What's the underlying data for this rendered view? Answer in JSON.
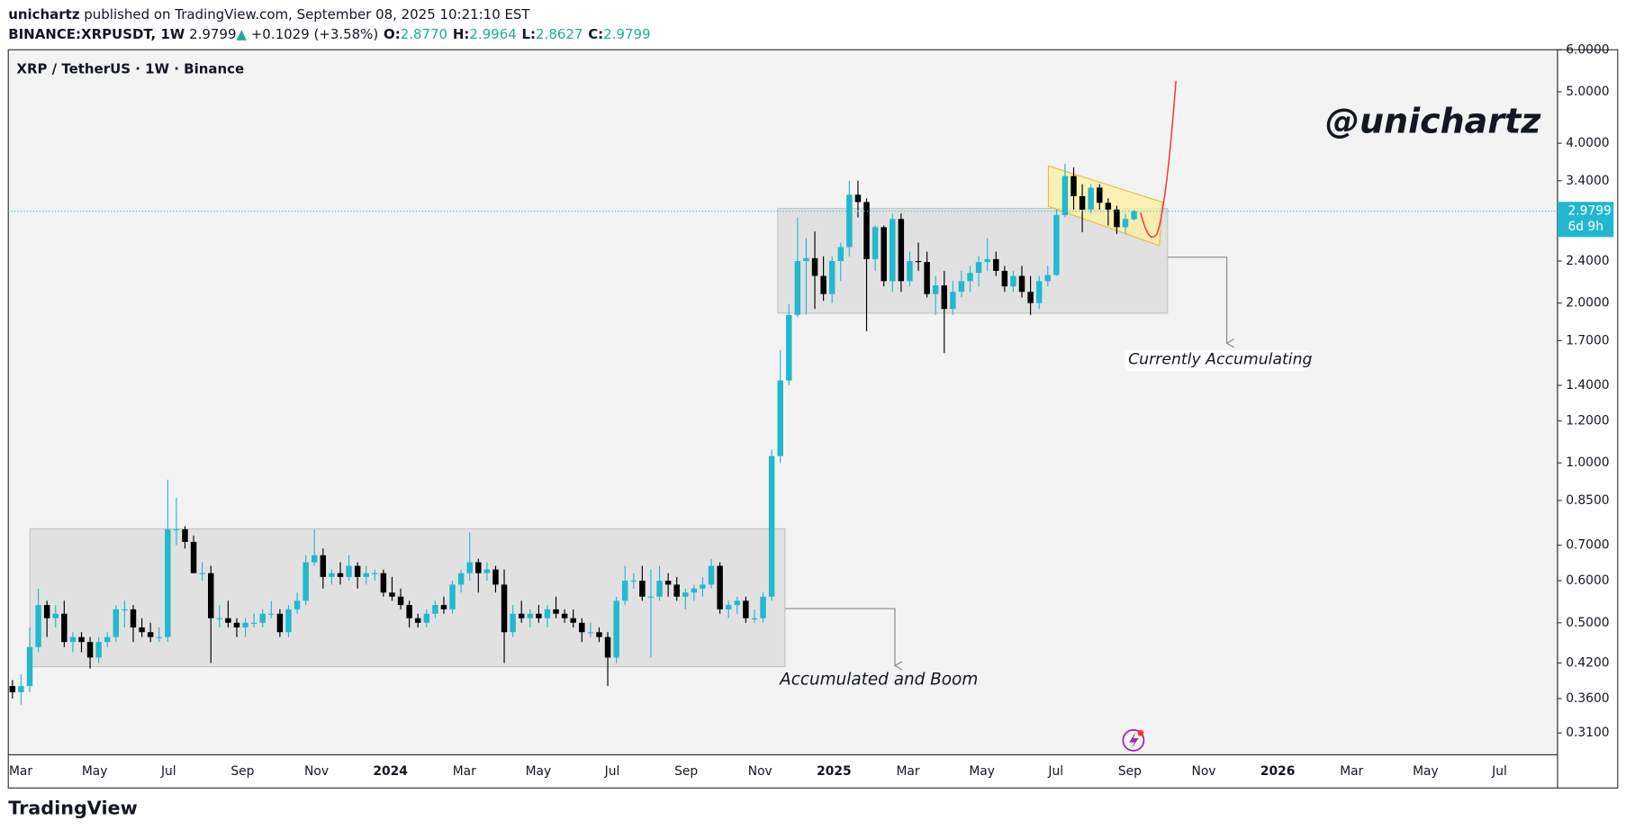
{
  "header": {
    "author": "unichartz",
    "published": "published on TradingView.com, September 08, 2025 10:21:10 EST",
    "symbol": "BINANCE:XRPUSDT, 1W",
    "last": "2.9799",
    "arrow": "▲",
    "change": "+0.1029 (+3.58%)",
    "ohlc": [
      {
        "key": "O:",
        "value": "2.8770"
      },
      {
        "key": "H:",
        "value": "2.9964"
      },
      {
        "key": "L:",
        "value": "2.8627"
      },
      {
        "key": "C:",
        "value": "2.9799"
      }
    ]
  },
  "chart_data": {
    "type": "candlestick",
    "title": "XRP / TetherUS · 1W · Binance",
    "log_scale": true,
    "grid": false,
    "up_color": "#22b8cf",
    "down_color": "#000000",
    "ylim": [
      0.282,
      6.0
    ],
    "yticks": [
      {
        "value": 6,
        "label": "6.0000"
      },
      {
        "value": 5,
        "label": "5.0000"
      },
      {
        "value": 4,
        "label": "4.0000"
      },
      {
        "value": 3.4,
        "label": "3.4000"
      },
      {
        "value": 2.4,
        "label": "2.4000"
      },
      {
        "value": 2,
        "label": "2.0000"
      },
      {
        "value": 1.7,
        "label": "1.7000"
      },
      {
        "value": 1.4,
        "label": "1.4000"
      },
      {
        "value": 1.2,
        "label": "1.2000"
      },
      {
        "value": 1,
        "label": "1.0000"
      },
      {
        "value": 0.85,
        "label": "0.8500"
      },
      {
        "value": 0.7,
        "label": "0.7000"
      },
      {
        "value": 0.6,
        "label": "0.6000"
      },
      {
        "value": 0.5,
        "label": "0.5000"
      },
      {
        "value": 0.42,
        "label": "0.4200"
      },
      {
        "value": 0.36,
        "label": "0.3600"
      },
      {
        "value": 0.31,
        "label": "0.3100"
      }
    ],
    "categories": [
      "Mar",
      "May",
      "Jul",
      "Sep",
      "Nov",
      "2024",
      "Mar",
      "May",
      "Jul",
      "Sep",
      "Nov",
      "2025",
      "Mar",
      "May",
      "Jul",
      "Sep",
      "Nov",
      "2026",
      "Mar",
      "May",
      "Jul"
    ],
    "price_label": {
      "value": 2.9799,
      "label": "2.9799"
    },
    "countdown": "6d 9h",
    "annotations": {
      "watermark": "@unichartz",
      "note_1": "Accumulated and Boom",
      "note_2": "Currently Accumulating"
    },
    "candles": [
      [
        0.38,
        0.39,
        0.36,
        0.37
      ],
      [
        0.37,
        0.4,
        0.35,
        0.38
      ],
      [
        0.38,
        0.49,
        0.37,
        0.45
      ],
      [
        0.45,
        0.58,
        0.44,
        0.54
      ],
      [
        0.54,
        0.55,
        0.47,
        0.51
      ],
      [
        0.51,
        0.54,
        0.49,
        0.52
      ],
      [
        0.52,
        0.55,
        0.45,
        0.46
      ],
      [
        0.46,
        0.48,
        0.44,
        0.47
      ],
      [
        0.47,
        0.48,
        0.44,
        0.46
      ],
      [
        0.46,
        0.47,
        0.41,
        0.43
      ],
      [
        0.43,
        0.47,
        0.42,
        0.46
      ],
      [
        0.46,
        0.48,
        0.45,
        0.47
      ],
      [
        0.47,
        0.54,
        0.46,
        0.53
      ],
      [
        0.53,
        0.55,
        0.49,
        0.53
      ],
      [
        0.53,
        0.54,
        0.46,
        0.49
      ],
      [
        0.49,
        0.51,
        0.47,
        0.48
      ],
      [
        0.48,
        0.5,
        0.46,
        0.47
      ],
      [
        0.47,
        0.49,
        0.46,
        0.47
      ],
      [
        0.47,
        0.93,
        0.46,
        0.75
      ],
      [
        0.75,
        0.86,
        0.7,
        0.75
      ],
      [
        0.75,
        0.76,
        0.69,
        0.71
      ],
      [
        0.71,
        0.73,
        0.62,
        0.62
      ],
      [
        0.62,
        0.65,
        0.6,
        0.62
      ],
      [
        0.62,
        0.64,
        0.42,
        0.51
      ],
      [
        0.51,
        0.54,
        0.49,
        0.51
      ],
      [
        0.51,
        0.55,
        0.49,
        0.5
      ],
      [
        0.5,
        0.51,
        0.47,
        0.49
      ],
      [
        0.49,
        0.51,
        0.47,
        0.5
      ],
      [
        0.5,
        0.52,
        0.49,
        0.5
      ],
      [
        0.5,
        0.53,
        0.49,
        0.52
      ],
      [
        0.52,
        0.55,
        0.51,
        0.52
      ],
      [
        0.52,
        0.53,
        0.47,
        0.48
      ],
      [
        0.48,
        0.54,
        0.47,
        0.53
      ],
      [
        0.53,
        0.57,
        0.52,
        0.55
      ],
      [
        0.55,
        0.67,
        0.54,
        0.65
      ],
      [
        0.65,
        0.75,
        0.64,
        0.67
      ],
      [
        0.67,
        0.69,
        0.58,
        0.61
      ],
      [
        0.61,
        0.63,
        0.59,
        0.62
      ],
      [
        0.62,
        0.65,
        0.59,
        0.61
      ],
      [
        0.61,
        0.67,
        0.6,
        0.64
      ],
      [
        0.64,
        0.65,
        0.58,
        0.61
      ],
      [
        0.61,
        0.64,
        0.59,
        0.62
      ],
      [
        0.62,
        0.63,
        0.6,
        0.62
      ],
      [
        0.62,
        0.63,
        0.56,
        0.57
      ],
      [
        0.57,
        0.61,
        0.55,
        0.56
      ],
      [
        0.56,
        0.58,
        0.53,
        0.54
      ],
      [
        0.54,
        0.55,
        0.49,
        0.51
      ],
      [
        0.51,
        0.52,
        0.49,
        0.5
      ],
      [
        0.5,
        0.53,
        0.49,
        0.52
      ],
      [
        0.52,
        0.55,
        0.51,
        0.54
      ],
      [
        0.54,
        0.56,
        0.52,
        0.53
      ],
      [
        0.53,
        0.6,
        0.52,
        0.59
      ],
      [
        0.59,
        0.63,
        0.57,
        0.62
      ],
      [
        0.62,
        0.74,
        0.6,
        0.65
      ],
      [
        0.65,
        0.66,
        0.57,
        0.62
      ],
      [
        0.62,
        0.65,
        0.6,
        0.63
      ],
      [
        0.63,
        0.64,
        0.57,
        0.59
      ],
      [
        0.59,
        0.63,
        0.42,
        0.48
      ],
      [
        0.48,
        0.54,
        0.47,
        0.52
      ],
      [
        0.52,
        0.55,
        0.5,
        0.51
      ],
      [
        0.51,
        0.53,
        0.49,
        0.52
      ],
      [
        0.52,
        0.54,
        0.5,
        0.51
      ],
      [
        0.51,
        0.54,
        0.49,
        0.53
      ],
      [
        0.53,
        0.56,
        0.51,
        0.52
      ],
      [
        0.52,
        0.53,
        0.5,
        0.51
      ],
      [
        0.51,
        0.53,
        0.49,
        0.5
      ],
      [
        0.5,
        0.51,
        0.46,
        0.48
      ],
      [
        0.48,
        0.5,
        0.47,
        0.48
      ],
      [
        0.48,
        0.49,
        0.46,
        0.47
      ],
      [
        0.47,
        0.48,
        0.38,
        0.43
      ],
      [
        0.43,
        0.56,
        0.42,
        0.55
      ],
      [
        0.55,
        0.64,
        0.54,
        0.6
      ],
      [
        0.6,
        0.62,
        0.58,
        0.6
      ],
      [
        0.6,
        0.64,
        0.55,
        0.56
      ],
      [
        0.56,
        0.63,
        0.43,
        0.56
      ],
      [
        0.56,
        0.64,
        0.55,
        0.6
      ],
      [
        0.6,
        0.62,
        0.56,
        0.59
      ],
      [
        0.59,
        0.61,
        0.55,
        0.56
      ],
      [
        0.56,
        0.58,
        0.53,
        0.57
      ],
      [
        0.57,
        0.59,
        0.55,
        0.58
      ],
      [
        0.58,
        0.61,
        0.56,
        0.59
      ],
      [
        0.59,
        0.66,
        0.58,
        0.64
      ],
      [
        0.64,
        0.65,
        0.52,
        0.53
      ],
      [
        0.53,
        0.55,
        0.51,
        0.54
      ],
      [
        0.54,
        0.56,
        0.52,
        0.55
      ],
      [
        0.55,
        0.56,
        0.5,
        0.51
      ],
      [
        0.51,
        0.53,
        0.5,
        0.51
      ],
      [
        0.51,
        0.57,
        0.5,
        0.56
      ],
      [
        0.56,
        1.06,
        0.55,
        1.03
      ],
      [
        1.03,
        1.63,
        1.0,
        1.43
      ],
      [
        1.43,
        1.99,
        1.4,
        1.9
      ],
      [
        1.9,
        2.9,
        1.88,
        2.4
      ],
      [
        2.4,
        2.65,
        1.9,
        2.43
      ],
      [
        2.43,
        2.73,
        1.95,
        2.25
      ],
      [
        2.25,
        2.45,
        2.02,
        2.08
      ],
      [
        2.08,
        2.45,
        2.0,
        2.4
      ],
      [
        2.4,
        2.6,
        2.2,
        2.55
      ],
      [
        2.55,
        3.4,
        2.45,
        3.2
      ],
      [
        3.2,
        3.4,
        2.9,
        3.1
      ],
      [
        3.1,
        3.15,
        1.77,
        2.42
      ],
      [
        2.42,
        2.8,
        2.3,
        2.78
      ],
      [
        2.78,
        2.8,
        2.15,
        2.2
      ],
      [
        2.2,
        2.95,
        2.1,
        2.88
      ],
      [
        2.88,
        2.95,
        2.1,
        2.2
      ],
      [
        2.2,
        2.5,
        2.15,
        2.4
      ],
      [
        2.4,
        2.6,
        2.3,
        2.39
      ],
      [
        2.39,
        2.5,
        2.05,
        2.08
      ],
      [
        2.08,
        2.25,
        1.9,
        2.16
      ],
      [
        2.16,
        2.3,
        1.61,
        1.95
      ],
      [
        1.95,
        2.2,
        1.9,
        2.1
      ],
      [
        2.1,
        2.3,
        2.05,
        2.2
      ],
      [
        2.2,
        2.35,
        2.1,
        2.28
      ],
      [
        2.28,
        2.45,
        2.15,
        2.39
      ],
      [
        2.39,
        2.65,
        2.3,
        2.42
      ],
      [
        2.42,
        2.5,
        2.25,
        2.3
      ],
      [
        2.3,
        2.35,
        2.1,
        2.15
      ],
      [
        2.15,
        2.3,
        2.1,
        2.25
      ],
      [
        2.25,
        2.35,
        2.05,
        2.1
      ],
      [
        2.1,
        2.25,
        1.9,
        2.0
      ],
      [
        2.0,
        2.25,
        1.95,
        2.2
      ],
      [
        2.2,
        2.35,
        2.15,
        2.26
      ],
      [
        2.26,
        3.0,
        2.25,
        2.93
      ],
      [
        2.93,
        3.66,
        2.9,
        3.47
      ],
      [
        3.47,
        3.6,
        3.0,
        3.18
      ],
      [
        3.18,
        3.35,
        2.72,
        3.0
      ],
      [
        3.0,
        3.35,
        2.95,
        3.3
      ],
      [
        3.3,
        3.35,
        3.0,
        3.09
      ],
      [
        3.09,
        3.15,
        2.8,
        3.0
      ],
      [
        3.0,
        3.05,
        2.7,
        2.78
      ],
      [
        2.78,
        2.95,
        2.7,
        2.88
      ],
      [
        2.877,
        2.9964,
        2.8627,
        2.9799
      ]
    ]
  },
  "footer": "TradingView"
}
